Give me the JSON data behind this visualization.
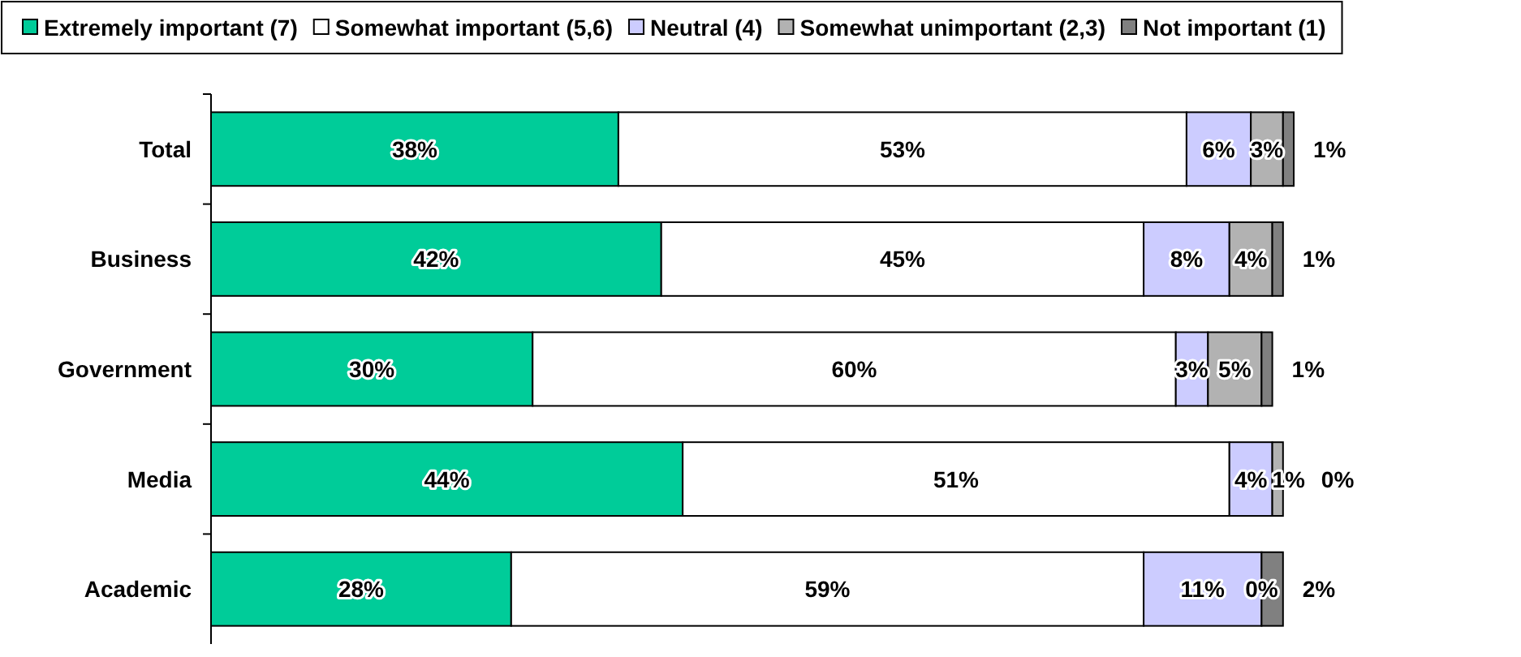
{
  "chart_data": {
    "type": "bar",
    "orientation": "horizontal",
    "stacked": true,
    "categories": [
      "Total",
      "Business",
      "Government",
      "Media",
      "Academic"
    ],
    "series": [
      {
        "name": "Extremely important (7)",
        "color": "#00cc99",
        "values": [
          38,
          42,
          30,
          44,
          28
        ],
        "value_labels": [
          "38%",
          "42%",
          "30%",
          "44%",
          "28%"
        ]
      },
      {
        "name": "Somewhat important (5,6)",
        "color": "#ffffff",
        "values": [
          53,
          45,
          60,
          51,
          59
        ],
        "value_labels": [
          "53%",
          "45%",
          "60%",
          "51%",
          "59%"
        ]
      },
      {
        "name": "Neutral (4)",
        "color": "#ccccff",
        "values": [
          6,
          8,
          3,
          4,
          11
        ],
        "value_labels": [
          "6%",
          "8%",
          "3%",
          "4%",
          "11%"
        ]
      },
      {
        "name": "Somewhat unimportant (2,3)",
        "color": "#b2b2b2",
        "values": [
          3,
          4,
          5,
          1,
          0
        ],
        "value_labels": [
          "3%",
          "4%",
          "5%",
          "1%",
          "0%"
        ]
      },
      {
        "name": "Not important (1)",
        "color": "#808080",
        "values": [
          1,
          1,
          1,
          0,
          2
        ],
        "value_labels": [
          "1%",
          "1%",
          "1%",
          "0%",
          "2%"
        ]
      }
    ],
    "tick_labels": "y",
    "legend": "top"
  }
}
